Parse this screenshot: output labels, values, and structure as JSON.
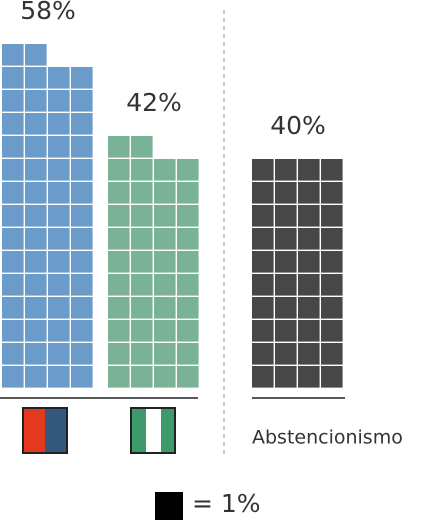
{
  "chart_data": {
    "type": "waffle",
    "categories": [
      null,
      null,
      "Abstencionismo"
    ],
    "values": [
      58,
      42,
      40
    ],
    "value_labels": [
      "58%",
      "42%",
      "40%"
    ],
    "colors": [
      "#6b9bc8",
      "#7ab298",
      "#474747"
    ],
    "unit": {
      "value": 1,
      "label": "= 1%"
    }
  }
}
